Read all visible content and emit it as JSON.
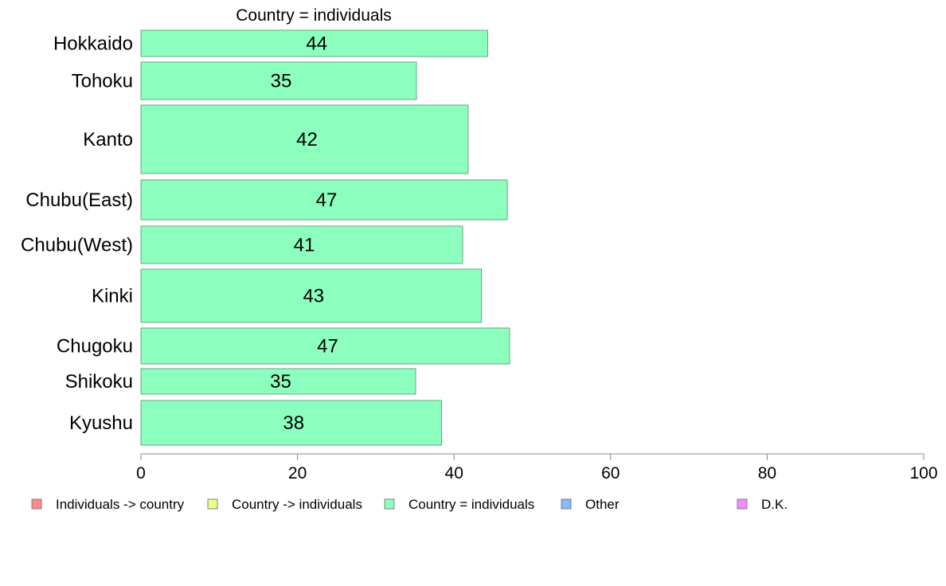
{
  "chart_data": {
    "type": "bar",
    "orientation": "horizontal",
    "title": "Country = individuals",
    "categories": [
      "Hokkaido",
      "Tohoku",
      "Kanto",
      "Chubu(East)",
      "Chubu(West)",
      "Kinki",
      "Chugoku",
      "Shikoku",
      "Kyushu"
    ],
    "values": [
      44.3,
      35.2,
      41.8,
      46.8,
      41.1,
      43.5,
      47.1,
      35.1,
      38.4
    ],
    "data_labels": [
      "44",
      "35",
      "42",
      "47",
      "41",
      "43",
      "47",
      "35",
      "38"
    ],
    "xlim": [
      0,
      100
    ],
    "x_ticks": [
      0,
      20,
      40,
      60,
      80,
      100
    ],
    "bar_color": "#8cffbf",
    "bar_stroke": "#6aa384",
    "legend": {
      "placement": "bottom",
      "items": [
        {
          "label": "Individuals -> country",
          "color": "#ff8c8c"
        },
        {
          "label": "Country -> individuals",
          "color": "#e9ff8c"
        },
        {
          "label": "Country = individuals",
          "color": "#8cffbf"
        },
        {
          "label": "Other",
          "color": "#8cb8ff"
        },
        {
          "label": "D.K.",
          "color": "#ef8cff"
        }
      ]
    }
  }
}
